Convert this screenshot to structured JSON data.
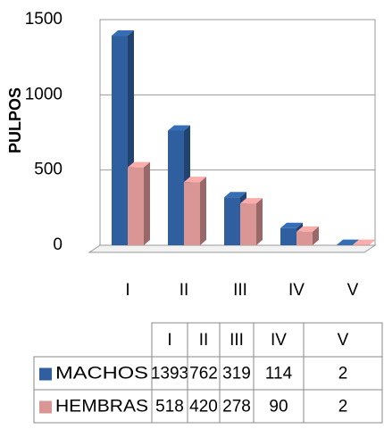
{
  "chart_data": {
    "type": "bar3d",
    "y_label": "PULPOS",
    "categories": [
      "I",
      "II",
      "III",
      "IV",
      "V"
    ],
    "series": [
      {
        "name": "MACHOS",
        "color": "#2f5f9f",
        "values": [
          1393,
          762,
          319,
          114,
          2
        ]
      },
      {
        "name": "HEMBRAS",
        "color": "#d99694",
        "values": [
          518,
          420,
          278,
          90,
          2
        ]
      }
    ],
    "ylim": [
      0,
      1500
    ],
    "yticks": [
      0,
      500,
      1000,
      1500
    ],
    "grid": true,
    "data_table": true
  }
}
